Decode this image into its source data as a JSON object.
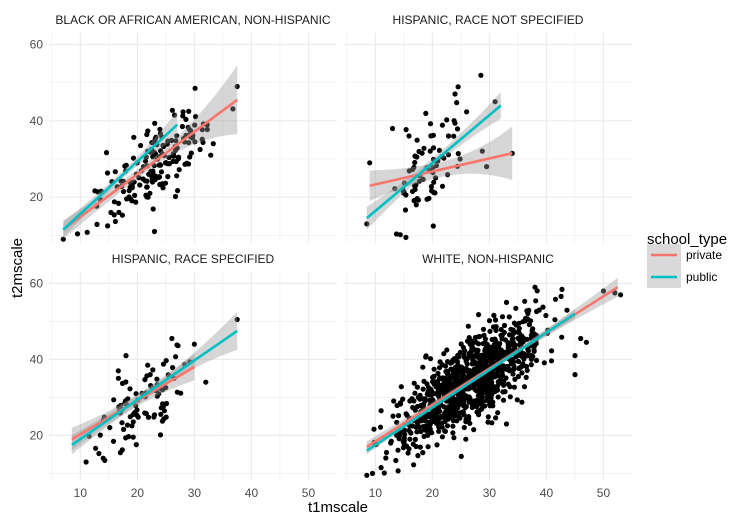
{
  "chart_data": {
    "type": "scatter",
    "facet_layout": "2x2",
    "x_label": "t1mscale",
    "y_label": "t2mscale",
    "x_ticks": [
      10,
      20,
      30,
      40,
      50
    ],
    "y_ticks": [
      20,
      40,
      60
    ],
    "xlim": [
      4.5,
      55
    ],
    "ylim": [
      8,
      63
    ],
    "grid": true,
    "smooth": "linear fit with confidence band",
    "legend": {
      "title": "school_type",
      "position": "right",
      "entries": [
        {
          "label": "private",
          "color": "#F8766D"
        },
        {
          "label": "public",
          "color": "#00BFC4"
        }
      ]
    },
    "colors": {
      "private": "#F8766D",
      "public": "#00BFC4",
      "points": "#000000",
      "band": "#999999",
      "grid": "#ebebeb"
    },
    "facets": [
      {
        "title": "BLACK OR AFRICAN AMERICAN, NON-HISPANIC",
        "fits": [
          {
            "group": "private",
            "x": [
              7,
              37.5
            ],
            "y": [
              11.5,
              45.5
            ],
            "band_halfwidth": [
              2.5,
              1.2,
              9
            ]
          },
          {
            "group": "public",
            "x": [
              7,
              27
            ],
            "y": [
              11.5,
              39
            ],
            "band_halfwidth": [
              2,
              1,
              3.5
            ]
          }
        ],
        "points_summary": {
          "n": 170,
          "x_range": [
            7,
            38
          ],
          "slope": 1.05,
          "intercept": 4.5,
          "sd": 5,
          "seed": 11
        },
        "points_fixed": [
          [
            37.5,
            49
          ],
          [
            31,
            32.5
          ],
          [
            29,
            42.5
          ],
          [
            26.5,
            41.5
          ],
          [
            7,
            9
          ],
          [
            23,
            11
          ]
        ]
      },
      {
        "title": "HISPANIC, RACE NOT SPECIFIED",
        "fits": [
          {
            "group": "private",
            "x": [
              9,
              34
            ],
            "y": [
              23,
              31.5
            ],
            "band_halfwidth": [
              4,
              2,
              7
            ]
          },
          {
            "group": "public",
            "x": [
              8.5,
              32
            ],
            "y": [
              14.5,
              44
            ],
            "band_halfwidth": [
              3,
              1.2,
              3.5
            ]
          }
        ],
        "points_summary": {
          "n": 80,
          "x_range": [
            8.5,
            32
          ],
          "slope": 1.2,
          "intercept": 4.5,
          "sd": 6,
          "seed": 23
        },
        "points_fixed": [
          [
            34,
            31.5
          ],
          [
            31,
            45
          ],
          [
            29.5,
            28
          ],
          [
            9,
            29
          ],
          [
            13,
            38
          ],
          [
            8.5,
            13
          ]
        ]
      },
      {
        "title": "HISPANIC, RACE SPECIFIED",
        "fits": [
          {
            "group": "private",
            "x": [
              8.5,
              30
            ],
            "y": [
              19,
              38
            ],
            "band_halfwidth": [
              3,
              1.5,
              3.5
            ]
          },
          {
            "group": "public",
            "x": [
              8.5,
              37.5
            ],
            "y": [
              17.5,
              47.5
            ],
            "band_halfwidth": [
              2.5,
              1.2,
              5
            ]
          }
        ],
        "points_summary": {
          "n": 90,
          "x_range": [
            8,
            33
          ],
          "slope": 1.0,
          "intercept": 8,
          "sd": 5,
          "seed": 37
        },
        "points_fixed": [
          [
            37.5,
            50.5
          ],
          [
            32,
            34
          ],
          [
            30,
            44
          ],
          [
            18,
            41
          ],
          [
            14,
            14
          ],
          [
            11,
            13
          ]
        ]
      },
      {
        "title": "WHITE, NON-HISPANIC",
        "fits": [
          {
            "group": "private",
            "x": [
              8.5,
              52.5
            ],
            "y": [
              17,
              59
            ],
            "band_halfwidth": [
              1.5,
              0.6,
              2.5
            ]
          },
          {
            "group": "public",
            "x": [
              8.5,
              45
            ],
            "y": [
              16,
              52
            ],
            "band_halfwidth": [
              1,
              0.4,
              1.2
            ]
          }
        ],
        "points_summary": {
          "n": 900,
          "x_range": [
            8,
            46
          ],
          "slope": 0.98,
          "intercept": 8,
          "sd": 5.5,
          "seed": 53
        },
        "points_fixed": [
          [
            52,
            57.5
          ],
          [
            53,
            57
          ],
          [
            50,
            58
          ],
          [
            46,
            45.5
          ],
          [
            47,
            44.5
          ],
          [
            45,
            41
          ],
          [
            45,
            36
          ],
          [
            38,
            59
          ],
          [
            33,
            55
          ],
          [
            8.5,
            9.5
          ],
          [
            9.5,
            10
          ],
          [
            33,
            23
          ],
          [
            26,
            24
          ]
        ]
      }
    ]
  }
}
